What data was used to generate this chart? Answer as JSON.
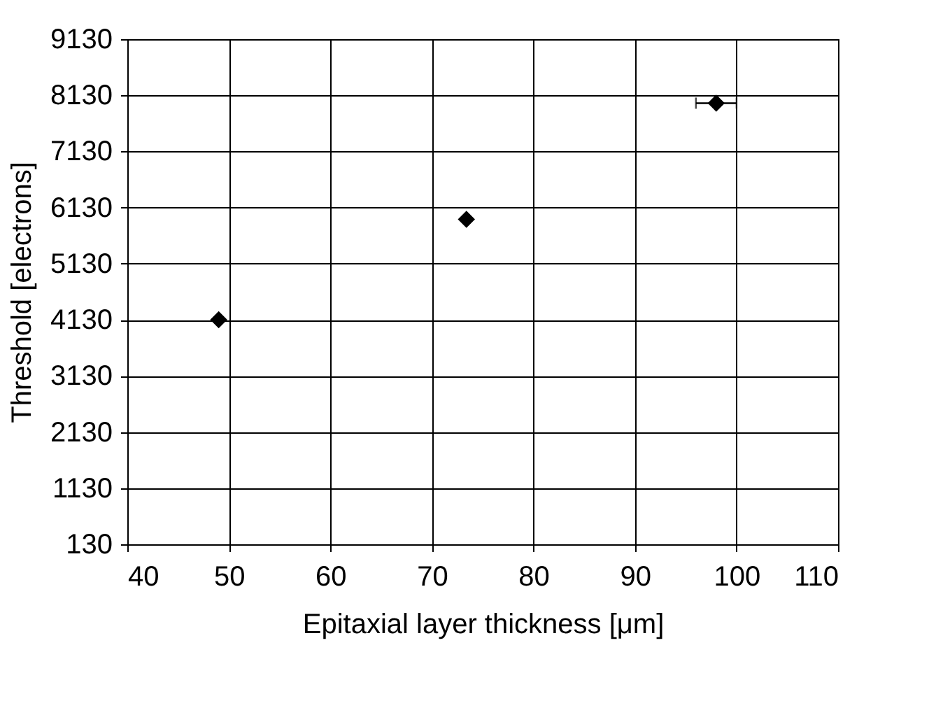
{
  "chart_data": {
    "type": "scatter",
    "xlabel": "Epitaxial layer thickness [μm]",
    "ylabel": "Threshold [electrons]",
    "x": [
      49,
      73.4,
      98
    ],
    "series": [
      {
        "color": "#000000",
        "values": [
          4130,
          5920,
          7990
        ],
        "xerrors": [
          null,
          null,
          2
        ]
      }
    ],
    "xlim": [
      40,
      110
    ],
    "xticks": [
      40,
      50,
      60,
      70,
      80,
      90,
      100,
      110
    ],
    "ylim": [
      130,
      9130
    ],
    "yticks": [
      130,
      1130,
      2130,
      3130,
      4130,
      5130,
      6130,
      7130,
      8130,
      9130
    ],
    "grid": true,
    "marker": "diamond",
    "legend": false
  }
}
